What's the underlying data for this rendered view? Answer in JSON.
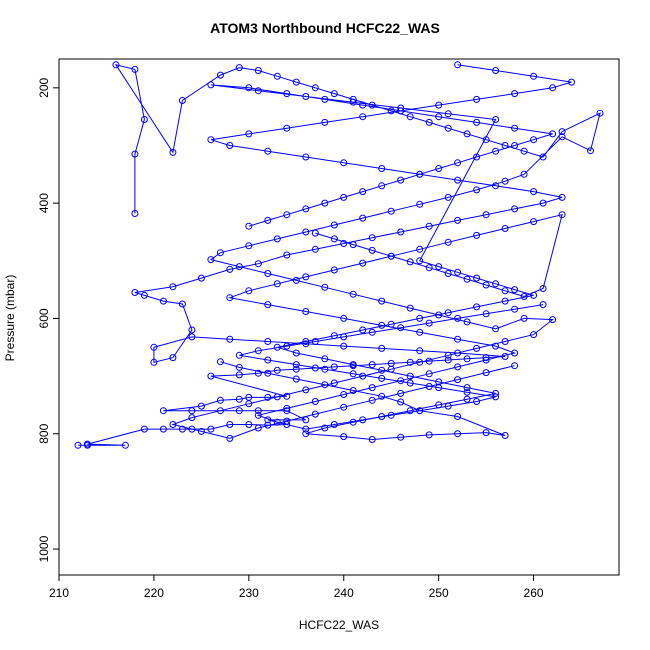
{
  "chart_data": {
    "type": "scatter",
    "title": "ATOM3 Northbound HCFC22_WAS",
    "xlabel": "HCFC22_WAS",
    "ylabel": "Pressure (mbar)",
    "xlim": [
      210,
      269
    ],
    "ylim": [
      1045,
      150
    ],
    "y_reversed": true,
    "x_ticks": [
      210,
      220,
      230,
      240,
      250,
      260
    ],
    "y_ticks": [
      200,
      400,
      600,
      800,
      1000
    ],
    "grid": false,
    "legend": "none",
    "series_color": "#0000ff",
    "marker": "open-circle",
    "connected_by_lines": true,
    "series": [
      {
        "values": [
          [
            212,
            820
          ],
          [
            213,
            820
          ],
          [
            217,
            820
          ],
          [
            213,
            818
          ],
          [
            219,
            792
          ],
          [
            221,
            792
          ],
          [
            223,
            792
          ],
          [
            224,
            792
          ],
          [
            226,
            792
          ],
          [
            228,
            784
          ],
          [
            230,
            784
          ],
          [
            232,
            785
          ],
          [
            234,
            784
          ],
          [
            232,
            776
          ],
          [
            236,
            776
          ],
          [
            234,
            760
          ],
          [
            231,
            760
          ],
          [
            229,
            760
          ],
          [
            224,
            760
          ],
          [
            221,
            760
          ],
          [
            225,
            752
          ],
          [
            227,
            742
          ],
          [
            229,
            740
          ],
          [
            230,
            737
          ],
          [
            232,
            737
          ],
          [
            234,
            735
          ],
          [
            226,
            700
          ],
          [
            229,
            698
          ],
          [
            231,
            695
          ],
          [
            233,
            690
          ],
          [
            235,
            688
          ],
          [
            237,
            686
          ],
          [
            239,
            684
          ],
          [
            241,
            682
          ],
          [
            243,
            680
          ],
          [
            245,
            678
          ],
          [
            247,
            676
          ],
          [
            249,
            674
          ],
          [
            251,
            672
          ],
          [
            253,
            670
          ],
          [
            255,
            668
          ],
          [
            257,
            666
          ],
          [
            252,
            660
          ],
          [
            248,
            656
          ],
          [
            244,
            652
          ],
          [
            240,
            648
          ],
          [
            236,
            644
          ],
          [
            232,
            640
          ],
          [
            228,
            636
          ],
          [
            224,
            632
          ],
          [
            220,
            650
          ],
          [
            220,
            676
          ],
          [
            222,
            668
          ],
          [
            224,
            620
          ],
          [
            223,
            575
          ],
          [
            221,
            570
          ],
          [
            219,
            560
          ],
          [
            218,
            555
          ],
          [
            222,
            545
          ],
          [
            225,
            530
          ],
          [
            228,
            515
          ],
          [
            231,
            505
          ],
          [
            234,
            490
          ],
          [
            237,
            480
          ],
          [
            240,
            470
          ],
          [
            243,
            460
          ],
          [
            246,
            450
          ],
          [
            249,
            440
          ],
          [
            252,
            430
          ],
          [
            255,
            420
          ],
          [
            258,
            410
          ],
          [
            261,
            400
          ],
          [
            263,
            390
          ],
          [
            260,
            380
          ],
          [
            256,
            370
          ],
          [
            252,
            360
          ],
          [
            248,
            350
          ],
          [
            244,
            340
          ],
          [
            240,
            330
          ],
          [
            236,
            320
          ],
          [
            232,
            310
          ],
          [
            228,
            300
          ],
          [
            226,
            290
          ],
          [
            230,
            280
          ],
          [
            234,
            270
          ],
          [
            238,
            260
          ],
          [
            242,
            250
          ],
          [
            246,
            240
          ],
          [
            250,
            230
          ],
          [
            254,
            220
          ],
          [
            258,
            210
          ],
          [
            262,
            200
          ],
          [
            264,
            190
          ],
          [
            260,
            180
          ],
          [
            256,
            170
          ],
          [
            252,
            160
          ]
        ]
      },
      {
        "values": [
          [
            218,
            418
          ],
          [
            218,
            315
          ],
          [
            219,
            255
          ],
          [
            218,
            168
          ],
          [
            216,
            160
          ],
          [
            222,
            312
          ],
          [
            223,
            222
          ],
          [
            227,
            178
          ],
          [
            229,
            165
          ],
          [
            231,
            170
          ],
          [
            233,
            180
          ],
          [
            235,
            190
          ],
          [
            237,
            200
          ],
          [
            239,
            210
          ],
          [
            241,
            220
          ],
          [
            243,
            230
          ],
          [
            245,
            240
          ],
          [
            247,
            250
          ],
          [
            249,
            260
          ],
          [
            251,
            270
          ],
          [
            253,
            280
          ],
          [
            255,
            290
          ],
          [
            257,
            300
          ],
          [
            259,
            310
          ],
          [
            261,
            320
          ],
          [
            263,
            276
          ],
          [
            267,
            244
          ],
          [
            266,
            309
          ],
          [
            263,
            285
          ],
          [
            259,
            350
          ],
          [
            257,
            362
          ],
          [
            254,
            377
          ],
          [
            251,
            390
          ],
          [
            248,
            402
          ],
          [
            245,
            414
          ],
          [
            242,
            426
          ],
          [
            239,
            438
          ],
          [
            236,
            450
          ],
          [
            233,
            462
          ],
          [
            230,
            474
          ],
          [
            227,
            486
          ],
          [
            226,
            498
          ],
          [
            229,
            510
          ],
          [
            232,
            522
          ],
          [
            235,
            534
          ],
          [
            238,
            546
          ],
          [
            241,
            558
          ],
          [
            244,
            570
          ],
          [
            247,
            582
          ],
          [
            250,
            594
          ],
          [
            253,
            606
          ],
          [
            256,
            618
          ],
          [
            259,
            600
          ],
          [
            262,
            602
          ],
          [
            260,
            628
          ],
          [
            257,
            640
          ],
          [
            254,
            652
          ],
          [
            251,
            664
          ],
          [
            248,
            676
          ],
          [
            245,
            688
          ],
          [
            242,
            700
          ],
          [
            239,
            712
          ],
          [
            236,
            724
          ],
          [
            233,
            736
          ],
          [
            230,
            748
          ],
          [
            227,
            760
          ],
          [
            224,
            772
          ],
          [
            222,
            784
          ],
          [
            225,
            796
          ],
          [
            228,
            808
          ],
          [
            231,
            790
          ],
          [
            234,
            778
          ],
          [
            237,
            766
          ],
          [
            240,
            754
          ],
          [
            243,
            742
          ],
          [
            246,
            730
          ],
          [
            249,
            718
          ],
          [
            252,
            706
          ],
          [
            255,
            694
          ],
          [
            258,
            682
          ]
        ]
      },
      {
        "values": [
          [
            230,
            440
          ],
          [
            232,
            430
          ],
          [
            234,
            420
          ],
          [
            236,
            410
          ],
          [
            238,
            400
          ],
          [
            240,
            390
          ],
          [
            242,
            380
          ],
          [
            244,
            370
          ],
          [
            246,
            360
          ],
          [
            248,
            350
          ],
          [
            250,
            340
          ],
          [
            252,
            330
          ],
          [
            254,
            320
          ],
          [
            256,
            310
          ],
          [
            258,
            300
          ],
          [
            260,
            290
          ],
          [
            262,
            280
          ],
          [
            258,
            270
          ],
          [
            254,
            260
          ],
          [
            250,
            250
          ],
          [
            246,
            240
          ],
          [
            242,
            230
          ],
          [
            238,
            220
          ],
          [
            234,
            210
          ],
          [
            230,
            200
          ],
          [
            226,
            195
          ],
          [
            231,
            205
          ],
          [
            236,
            215
          ],
          [
            241,
            225
          ],
          [
            246,
            235
          ],
          [
            251,
            245
          ],
          [
            256,
            255
          ],
          [
            248,
            500
          ],
          [
            250,
            510
          ],
          [
            252,
            520
          ],
          [
            254,
            530
          ],
          [
            256,
            540
          ],
          [
            258,
            550
          ],
          [
            260,
            560
          ],
          [
            257,
            570
          ],
          [
            254,
            580
          ],
          [
            251,
            590
          ],
          [
            248,
            600
          ],
          [
            245,
            610
          ],
          [
            242,
            620
          ],
          [
            239,
            630
          ],
          [
            236,
            640
          ],
          [
            233,
            650
          ],
          [
            235,
            660
          ],
          [
            238,
            670
          ],
          [
            241,
            680
          ],
          [
            244,
            690
          ],
          [
            247,
            700
          ],
          [
            250,
            710
          ],
          [
            253,
            720
          ],
          [
            256,
            730
          ],
          [
            253,
            740
          ],
          [
            250,
            750
          ],
          [
            247,
            760
          ],
          [
            244,
            770
          ],
          [
            241,
            780
          ],
          [
            238,
            790
          ],
          [
            236,
            800
          ],
          [
            240,
            805
          ],
          [
            243,
            810
          ],
          [
            246,
            806
          ],
          [
            249,
            802
          ],
          [
            252,
            800
          ],
          [
            255,
            798
          ],
          [
            257,
            803
          ],
          [
            252,
            770
          ],
          [
            248,
            760
          ],
          [
            246,
            745
          ],
          [
            244,
            735
          ],
          [
            241,
            725
          ],
          [
            238,
            715
          ],
          [
            235,
            705
          ],
          [
            232,
            695
          ],
          [
            229,
            685
          ],
          [
            227,
            675
          ]
        ]
      },
      {
        "values": [
          [
            237,
            452
          ],
          [
            239,
            462
          ],
          [
            241,
            472
          ],
          [
            243,
            482
          ],
          [
            245,
            492
          ],
          [
            247,
            502
          ],
          [
            249,
            512
          ],
          [
            251,
            522
          ],
          [
            253,
            532
          ],
          [
            255,
            542
          ],
          [
            257,
            552
          ],
          [
            259,
            562
          ],
          [
            261,
            548
          ],
          [
            263,
            420
          ],
          [
            260,
            432
          ],
          [
            257,
            444
          ],
          [
            254,
            456
          ],
          [
            251,
            468
          ],
          [
            248,
            480
          ],
          [
            245,
            492
          ],
          [
            242,
            504
          ],
          [
            239,
            516
          ],
          [
            236,
            528
          ],
          [
            233,
            540
          ],
          [
            230,
            552
          ],
          [
            228,
            564
          ],
          [
            232,
            576
          ],
          [
            236,
            588
          ],
          [
            240,
            600
          ],
          [
            244,
            612
          ],
          [
            248,
            624
          ],
          [
            252,
            636
          ],
          [
            256,
            648
          ],
          [
            258,
            660
          ],
          [
            255,
            672
          ],
          [
            252,
            684
          ],
          [
            249,
            696
          ],
          [
            246,
            708
          ],
          [
            243,
            720
          ],
          [
            240,
            732
          ],
          [
            237,
            744
          ],
          [
            234,
            756
          ],
          [
            231,
            768
          ],
          [
            233,
            780
          ],
          [
            236,
            792
          ],
          [
            239,
            784
          ],
          [
            242,
            776
          ],
          [
            245,
            768
          ],
          [
            248,
            760
          ],
          [
            251,
            752
          ],
          [
            254,
            744
          ],
          [
            256,
            736
          ],
          [
            253,
            728
          ],
          [
            250,
            720
          ],
          [
            247,
            712
          ],
          [
            244,
            704
          ],
          [
            241,
            696
          ],
          [
            238,
            688
          ],
          [
            235,
            680
          ],
          [
            232,
            672
          ],
          [
            229,
            664
          ],
          [
            231,
            656
          ],
          [
            234,
            648
          ],
          [
            237,
            640
          ],
          [
            240,
            632
          ],
          [
            243,
            624
          ],
          [
            246,
            616
          ],
          [
            249,
            608
          ],
          [
            252,
            600
          ],
          [
            255,
            592
          ],
          [
            258,
            584
          ],
          [
            261,
            576
          ]
        ]
      }
    ]
  }
}
